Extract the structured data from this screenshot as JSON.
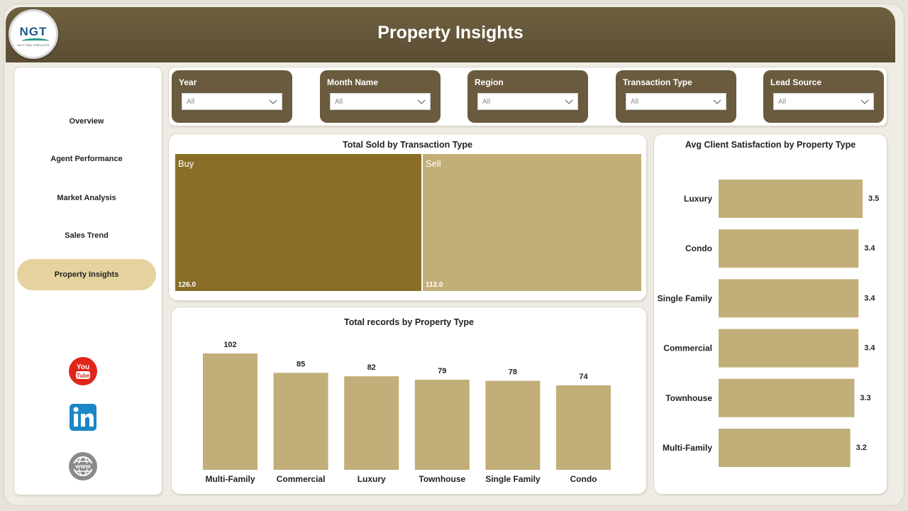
{
  "header": {
    "title": "Property Insights",
    "logo_text": "NGT",
    "logo_subtext": "NEXT GEN TEMPLATES"
  },
  "sidebar": {
    "items": [
      {
        "label": "Overview"
      },
      {
        "label": "Agent Performance"
      },
      {
        "label": "Market Analysis"
      },
      {
        "label": "Sales Trend"
      },
      {
        "label": "Property Insights",
        "active": true
      }
    ],
    "social": [
      {
        "icon": "youtube-icon",
        "label": "You Tube",
        "color": "#e1251b"
      },
      {
        "icon": "linkedin-icon",
        "label": "in",
        "color": "#1c86c6"
      },
      {
        "icon": "website-icon",
        "label": "WWW",
        "color": "#8a8a8a"
      }
    ]
  },
  "filters": [
    {
      "label": "Year",
      "value": "All"
    },
    {
      "label": "Month Name",
      "value": "All"
    },
    {
      "label": "Region",
      "value": "All"
    },
    {
      "label": "Transaction Type",
      "value": "All"
    },
    {
      "label": "Lead Source",
      "value": "All"
    }
  ],
  "colors": {
    "header": "#5f5238",
    "filter_bg": "#6a5b3e",
    "active_nav": "#e5d29e",
    "bar": "#c2ae78",
    "treemap_dark": "#8a6e27",
    "treemap_light": "#c2ae78"
  },
  "treemap": {
    "title": "Total Sold by Transaction Type",
    "items": [
      {
        "name": "Buy",
        "value_label": "126.0"
      },
      {
        "name": "Sell",
        "value_label": "112.0"
      }
    ]
  },
  "chart_data": [
    {
      "type": "treemap",
      "title": "Total Sold by Transaction Type",
      "categories": [
        "Buy",
        "Sell"
      ],
      "values": [
        126.0,
        112.0
      ]
    },
    {
      "type": "bar",
      "orientation": "vertical",
      "title": "Total records by Property Type",
      "categories": [
        "Multi-Family",
        "Commercial",
        "Luxury",
        "Townhouse",
        "Single Family",
        "Condo"
      ],
      "values": [
        102,
        85,
        82,
        79,
        78,
        74
      ],
      "ylim": [
        0,
        102
      ],
      "grid": false
    },
    {
      "type": "bar",
      "orientation": "horizontal",
      "title": "Avg Client Satisfaction by Property Type",
      "categories": [
        "Luxury",
        "Condo",
        "Single Family",
        "Commercial",
        "Townhouse",
        "Multi-Family"
      ],
      "values": [
        3.5,
        3.4,
        3.4,
        3.4,
        3.3,
        3.2
      ],
      "xlim": [
        0,
        3.5
      ],
      "grid": false
    }
  ]
}
